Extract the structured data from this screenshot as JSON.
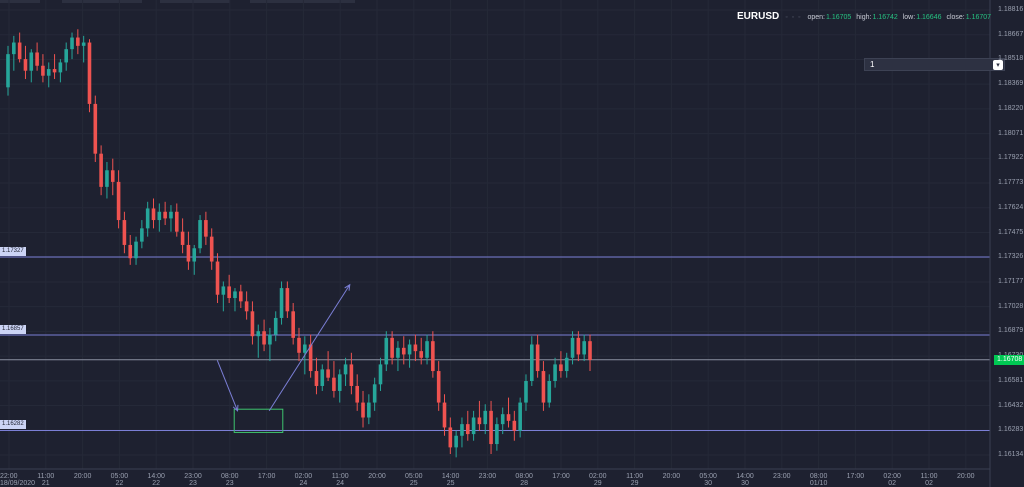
{
  "symbol": "EURUSD",
  "ohlc": {
    "open_label": "open:",
    "open": "1.16705",
    "high_label": "high:",
    "high": "1.16742",
    "low_label": "low:",
    "low": "1.16646",
    "close_label": "close:",
    "close": "1.16707"
  },
  "interval": {
    "value": "1"
  },
  "current_price_label": "1.16708",
  "price_axis": {
    "min": 1.16134,
    "max": 1.18816,
    "ticks": [
      "1.18816",
      "1.18667",
      "1.18518",
      "1.18369",
      "1.18220",
      "1.18071",
      "1.17922",
      "1.17773",
      "1.17624",
      "1.17475",
      "1.17326",
      "1.17177",
      "1.17028",
      "1.16879",
      "1.16730",
      "1.16581",
      "1.16432",
      "1.16283",
      "1.16134"
    ]
  },
  "time_axis": {
    "ticks": [
      {
        "t": "22:00",
        "d": "18/09/2020"
      },
      {
        "t": "11:00",
        "d": "21"
      },
      {
        "t": "20:00",
        "d": ""
      },
      {
        "t": "05:00",
        "d": "22"
      },
      {
        "t": "14:00",
        "d": "22"
      },
      {
        "t": "23:00",
        "d": "23"
      },
      {
        "t": "08:00",
        "d": "23"
      },
      {
        "t": "17:00",
        "d": ""
      },
      {
        "t": "02:00",
        "d": "24"
      },
      {
        "t": "11:00",
        "d": "24"
      },
      {
        "t": "20:00",
        "d": ""
      },
      {
        "t": "05:00",
        "d": "25"
      },
      {
        "t": "14:00",
        "d": "25"
      },
      {
        "t": "23:00",
        "d": ""
      },
      {
        "t": "08:00",
        "d": "28"
      },
      {
        "t": "17:00",
        "d": ""
      },
      {
        "t": "02:00",
        "d": "29"
      },
      {
        "t": "11:00",
        "d": "29"
      },
      {
        "t": "20:00",
        "d": ""
      },
      {
        "t": "05:00",
        "d": "30"
      },
      {
        "t": "14:00",
        "d": "30"
      },
      {
        "t": "23:00",
        "d": ""
      },
      {
        "t": "08:00",
        "d": "01/10"
      },
      {
        "t": "17:00",
        "d": ""
      },
      {
        "t": "02:00",
        "d": "02"
      },
      {
        "t": "11:00",
        "d": "02"
      },
      {
        "t": "20:00",
        "d": ""
      }
    ]
  },
  "horizontal_lines": [
    {
      "label": "1.17327",
      "price": 1.17327
    },
    {
      "label": "1.16857",
      "price": 1.16857
    },
    {
      "label": "1.16282",
      "price": 1.16282
    }
  ],
  "current_price_line": 1.16708,
  "colors": {
    "up": "#26a69a",
    "down": "#ef5350",
    "line": "#7b7fd6",
    "box": "#3ec46d",
    "background": "#1e2130",
    "price_tag": "#00c853"
  },
  "candles": [
    [
      1.1835,
      1.186,
      1.183,
      1.1855
    ],
    [
      1.1855,
      1.1866,
      1.1845,
      1.1862
    ],
    [
      1.1862,
      1.1868,
      1.185,
      1.1852
    ],
    [
      1.1852,
      1.186,
      1.184,
      1.1845
    ],
    [
      1.1845,
      1.1858,
      1.1838,
      1.1856
    ],
    [
      1.1856,
      1.1862,
      1.1845,
      1.1848
    ],
    [
      1.1848,
      1.1855,
      1.1838,
      1.1842
    ],
    [
      1.1842,
      1.185,
      1.1835,
      1.1846
    ],
    [
      1.1846,
      1.1855,
      1.184,
      1.1844
    ],
    [
      1.1844,
      1.1852,
      1.1838,
      1.185
    ],
    [
      1.185,
      1.1862,
      1.1845,
      1.1858
    ],
    [
      1.1858,
      1.1868,
      1.1852,
      1.1865
    ],
    [
      1.1865,
      1.187,
      1.1855,
      1.186
    ],
    [
      1.186,
      1.1866,
      1.185,
      1.1862
    ],
    [
      1.1862,
      1.1864,
      1.182,
      1.1825
    ],
    [
      1.1825,
      1.183,
      1.179,
      1.1795
    ],
    [
      1.1795,
      1.18,
      1.177,
      1.1775
    ],
    [
      1.1775,
      1.179,
      1.1768,
      1.1785
    ],
    [
      1.1785,
      1.1792,
      1.177,
      1.1778
    ],
    [
      1.1778,
      1.1785,
      1.175,
      1.1755
    ],
    [
      1.1755,
      1.176,
      1.1735,
      1.174
    ],
    [
      1.174,
      1.1746,
      1.1728,
      1.1732
    ],
    [
      1.1732,
      1.1745,
      1.1728,
      1.1742
    ],
    [
      1.1742,
      1.1755,
      1.1738,
      1.175
    ],
    [
      1.175,
      1.1766,
      1.1745,
      1.1762
    ],
    [
      1.1762,
      1.1768,
      1.175,
      1.1755
    ],
    [
      1.1755,
      1.1765,
      1.1748,
      1.176
    ],
    [
      1.176,
      1.1766,
      1.1752,
      1.1756
    ],
    [
      1.1756,
      1.1764,
      1.1748,
      1.176
    ],
    [
      1.176,
      1.1765,
      1.1745,
      1.1748
    ],
    [
      1.1748,
      1.1756,
      1.1735,
      1.174
    ],
    [
      1.174,
      1.1748,
      1.1725,
      1.173
    ],
    [
      1.173,
      1.174,
      1.1722,
      1.1738
    ],
    [
      1.1738,
      1.1758,
      1.1735,
      1.1755
    ],
    [
      1.1755,
      1.176,
      1.174,
      1.1745
    ],
    [
      1.1745,
      1.175,
      1.1725,
      1.173
    ],
    [
      1.173,
      1.1735,
      1.1705,
      1.171
    ],
    [
      1.171,
      1.1718,
      1.17,
      1.1715
    ],
    [
      1.1715,
      1.1722,
      1.1705,
      1.1708
    ],
    [
      1.1708,
      1.1714,
      1.17,
      1.1712
    ],
    [
      1.1712,
      1.1716,
      1.1702,
      1.1706
    ],
    [
      1.1706,
      1.1712,
      1.1695,
      1.17
    ],
    [
      1.17,
      1.1706,
      1.168,
      1.1685
    ],
    [
      1.1685,
      1.1692,
      1.1672,
      1.1688
    ],
    [
      1.1688,
      1.1695,
      1.1676,
      1.168
    ],
    [
      1.168,
      1.169,
      1.167,
      1.1686
    ],
    [
      1.1686,
      1.17,
      1.1682,
      1.1696
    ],
    [
      1.1696,
      1.1718,
      1.1692,
      1.1714
    ],
    [
      1.1714,
      1.1718,
      1.1696,
      1.17
    ],
    [
      1.17,
      1.1705,
      1.168,
      1.1684
    ],
    [
      1.1684,
      1.169,
      1.167,
      1.1675
    ],
    [
      1.1675,
      1.1685,
      1.1662,
      1.168
    ],
    [
      1.168,
      1.1686,
      1.166,
      1.1664
    ],
    [
      1.1664,
      1.1672,
      1.165,
      1.1655
    ],
    [
      1.1655,
      1.1668,
      1.1652,
      1.1665
    ],
    [
      1.1665,
      1.1676,
      1.1658,
      1.166
    ],
    [
      1.166,
      1.167,
      1.1648,
      1.1652
    ],
    [
      1.1652,
      1.1665,
      1.1645,
      1.1662
    ],
    [
      1.1662,
      1.1672,
      1.1655,
      1.1668
    ],
    [
      1.1668,
      1.1675,
      1.165,
      1.1655
    ],
    [
      1.1655,
      1.1662,
      1.164,
      1.1645
    ],
    [
      1.1645,
      1.1652,
      1.163,
      1.1636
    ],
    [
      1.1636,
      1.165,
      1.1632,
      1.1645
    ],
    [
      1.1645,
      1.166,
      1.164,
      1.1656
    ],
    [
      1.1656,
      1.1672,
      1.1652,
      1.1668
    ],
    [
      1.1668,
      1.1688,
      1.1664,
      1.1684
    ],
    [
      1.1684,
      1.1688,
      1.1668,
      1.1672
    ],
    [
      1.1672,
      1.1682,
      1.1664,
      1.1678
    ],
    [
      1.1678,
      1.1685,
      1.1668,
      1.1674
    ],
    [
      1.1674,
      1.1683,
      1.1666,
      1.168
    ],
    [
      1.168,
      1.1686,
      1.167,
      1.1676
    ],
    [
      1.1676,
      1.1684,
      1.1668,
      1.1672
    ],
    [
      1.1672,
      1.1686,
      1.1668,
      1.1682
    ],
    [
      1.1682,
      1.1688,
      1.166,
      1.1664
    ],
    [
      1.1664,
      1.167,
      1.164,
      1.1645
    ],
    [
      1.1645,
      1.165,
      1.1625,
      1.163
    ],
    [
      1.163,
      1.1636,
      1.1614,
      1.1618
    ],
    [
      1.1618,
      1.1628,
      1.1612,
      1.1625
    ],
    [
      1.1625,
      1.1636,
      1.1618,
      1.1632
    ],
    [
      1.1632,
      1.164,
      1.1622,
      1.1626
    ],
    [
      1.1626,
      1.164,
      1.1622,
      1.1636
    ],
    [
      1.1636,
      1.1646,
      1.1628,
      1.1632
    ],
    [
      1.1632,
      1.1644,
      1.1626,
      1.164
    ],
    [
      1.164,
      1.1646,
      1.1614,
      1.162
    ],
    [
      1.162,
      1.1636,
      1.1616,
      1.1632
    ],
    [
      1.1632,
      1.1642,
      1.1626,
      1.1638
    ],
    [
      1.1638,
      1.1648,
      1.163,
      1.1634
    ],
    [
      1.1634,
      1.164,
      1.1622,
      1.1628
    ],
    [
      1.1628,
      1.1648,
      1.1624,
      1.1645
    ],
    [
      1.1645,
      1.1662,
      1.164,
      1.1658
    ],
    [
      1.1658,
      1.1685,
      1.1655,
      1.168
    ],
    [
      1.168,
      1.1686,
      1.166,
      1.1664
    ],
    [
      1.1664,
      1.167,
      1.164,
      1.1645
    ],
    [
      1.1645,
      1.1662,
      1.1642,
      1.1658
    ],
    [
      1.1658,
      1.1672,
      1.1654,
      1.1668
    ],
    [
      1.1668,
      1.1676,
      1.166,
      1.1664
    ],
    [
      1.1664,
      1.1675,
      1.166,
      1.1672
    ],
    [
      1.1672,
      1.1688,
      1.1668,
      1.1684
    ],
    [
      1.1684,
      1.1688,
      1.167,
      1.1674
    ],
    [
      1.1674,
      1.1686,
      1.167,
      1.1682
    ],
    [
      1.1682,
      1.1686,
      1.1664,
      1.16707
    ]
  ],
  "projection": {
    "points": [
      [
        5.66,
        1.16705
      ],
      [
        6.21,
        1.164
      ],
      [
        7.07,
        1.164
      ],
      [
        9.26,
        1.1716
      ]
    ],
    "target_zone": {
      "x0": 6.12,
      "x1": 7.44,
      "low": 1.1627,
      "high": 1.1641
    }
  }
}
